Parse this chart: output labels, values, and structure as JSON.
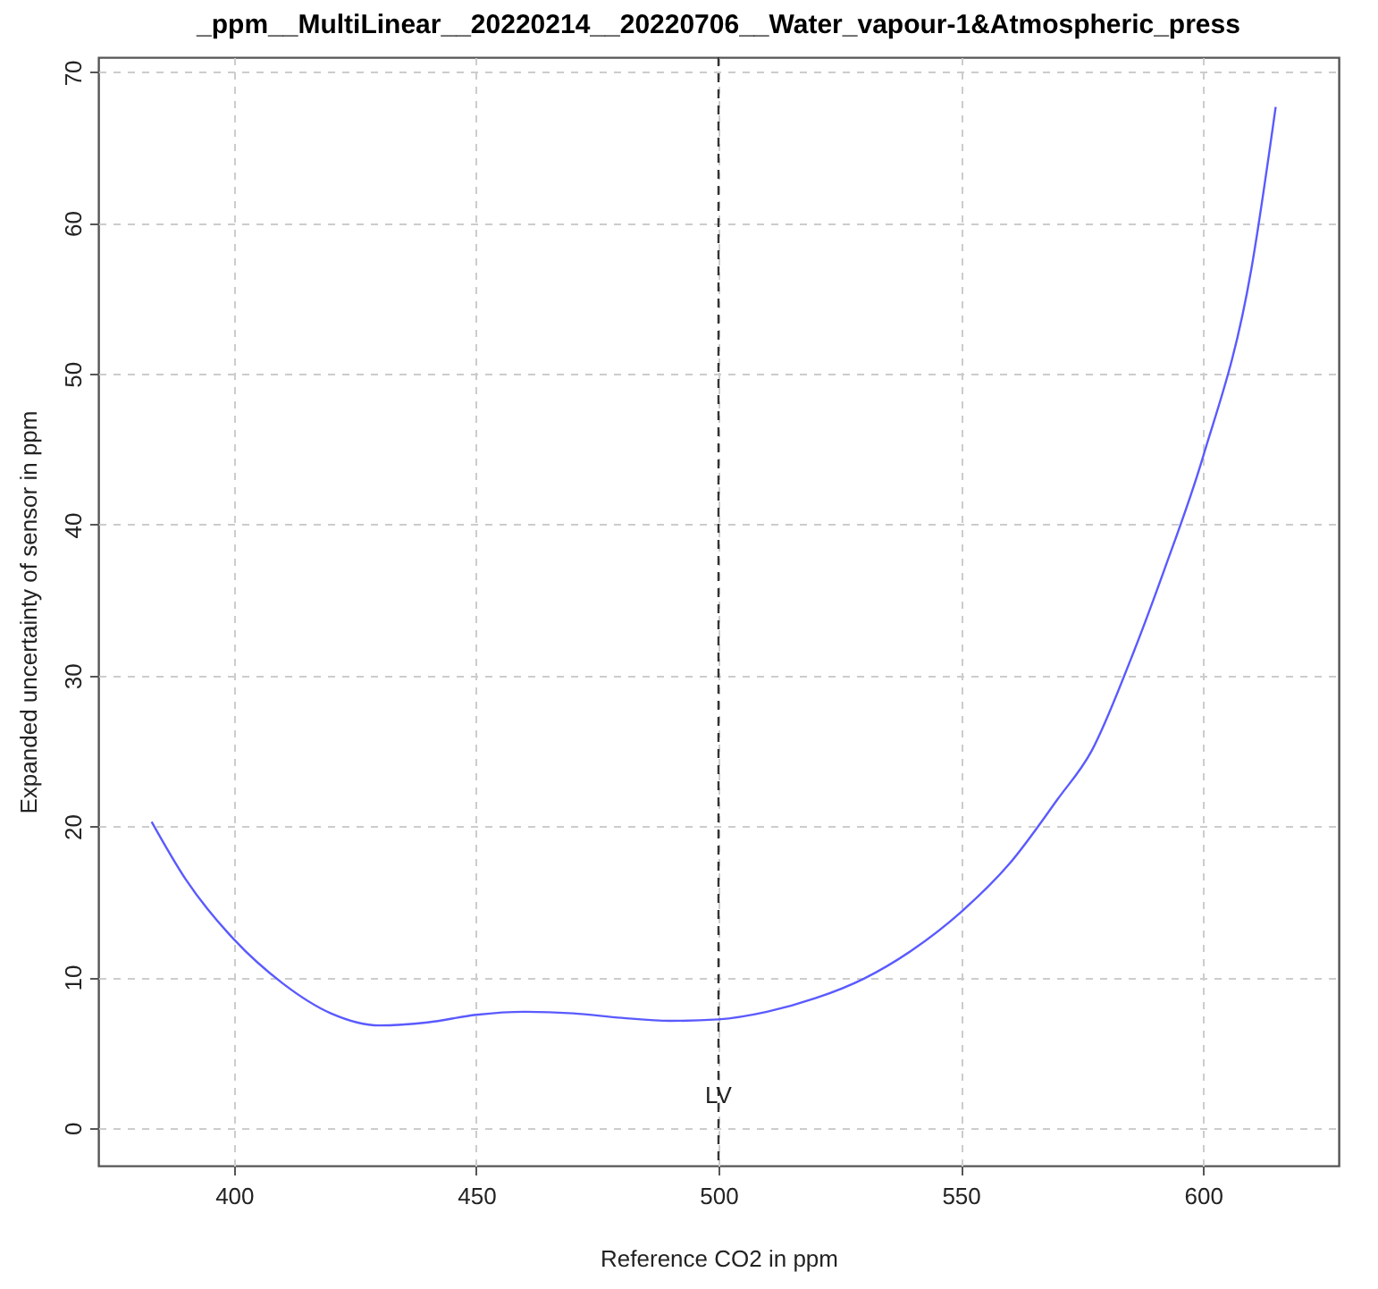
{
  "chart_data": {
    "type": "line",
    "title": "_ppm__MultiLinear__20220214__20220706__Water_vapour-1&Atmospheric_press",
    "xlabel": "Reference CO2 in ppm",
    "ylabel": "Expanded uncertainty of sensor in ppm",
    "x": [
      383,
      390,
      400,
      410,
      420,
      430,
      440,
      450,
      460,
      470,
      480,
      490,
      500,
      510,
      520,
      530,
      540,
      550,
      560,
      570,
      577,
      585,
      592,
      600,
      610,
      615
    ],
    "series": [
      {
        "color": "#5a5aff",
        "values": [
          20.3,
          16.5,
          12.5,
          9.6,
          7.6,
          6.8,
          7.0,
          7.5,
          7.7,
          7.6,
          7.3,
          7.1,
          7.2,
          7.7,
          8.6,
          9.9,
          11.8,
          14.3,
          17.5,
          21.8,
          25,
          31,
          37,
          44.5,
          57,
          67.7
        ]
      }
    ],
    "xlim": [
      372,
      628
    ],
    "ylim": [
      -2.5,
      71
    ],
    "xticks": [
      400,
      450,
      500,
      550,
      600
    ],
    "yticks": [
      0,
      10,
      20,
      30,
      40,
      50,
      60,
      70
    ],
    "grid": true,
    "line_style": "solid",
    "ref_lines": [
      {
        "axis": "x",
        "value": 500,
        "label": "LV",
        "color": "#333333",
        "line_style": "dashed"
      }
    ]
  }
}
